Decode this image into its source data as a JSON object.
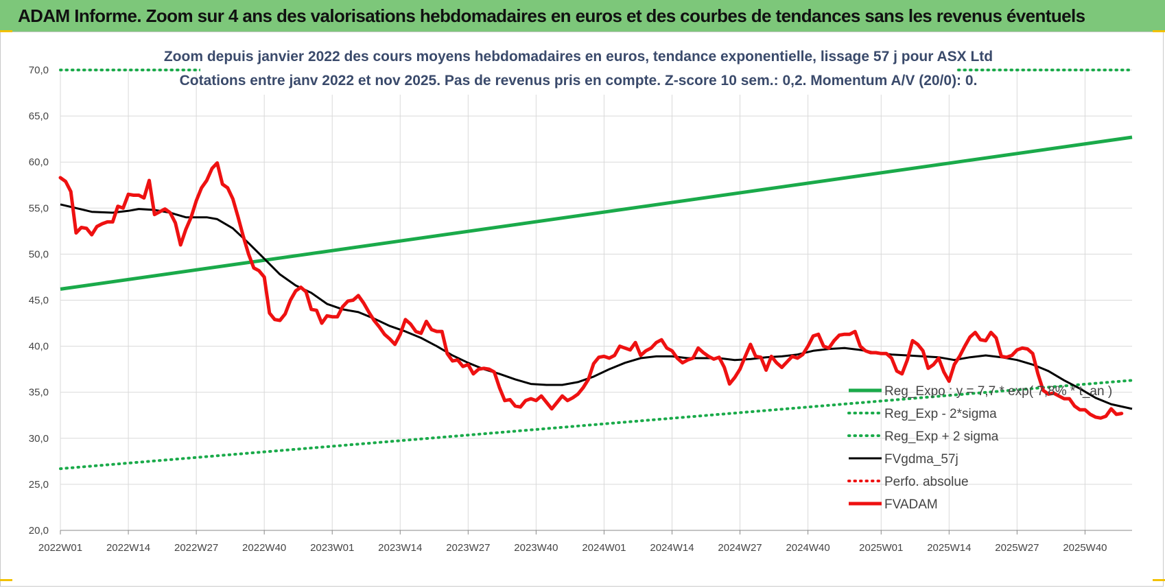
{
  "banner_title": "ADAM Informe. Zoom sur 4 ans des valorisations hebdomadaires en euros et des courbes de tendances sans les revenus éventuels",
  "colors": {
    "banner": "#7dc77a",
    "green": "#1aaa4a",
    "black": "#000000",
    "red": "#ee1111",
    "grid": "#d9d9d9"
  },
  "chart_data": {
    "type": "line",
    "title_line1": "Zoom depuis janvier 2022 des cours moyens hebdomadaires en euros, tendance exponentielle, lissage 57 j pour ASX Ltd",
    "title_line2": "Cotations entre janv 2022 et nov 2025. Pas de revenus pris en compte. Z-score 10 sem.: 0,2. Momentum A/V (20/0): 0.",
    "ylim": [
      20,
      70
    ],
    "yticks": [
      "20,0",
      "25,0",
      "30,0",
      "35,0",
      "40,0",
      "45,0",
      "50,0",
      "55,0",
      "60,0",
      "65,0",
      "70,0"
    ],
    "x_range_weeks": [
      0,
      205
    ],
    "xticks": [
      {
        "w": 0,
        "label": "2022W01"
      },
      {
        "w": 13,
        "label": "2022W14"
      },
      {
        "w": 26,
        "label": "2022W27"
      },
      {
        "w": 39,
        "label": "2022W40"
      },
      {
        "w": 52,
        "label": "2023W01"
      },
      {
        "w": 65,
        "label": "2023W14"
      },
      {
        "w": 78,
        "label": "2023W27"
      },
      {
        "w": 91,
        "label": "2023W40"
      },
      {
        "w": 104,
        "label": "2024W01"
      },
      {
        "w": 117,
        "label": "2024W14"
      },
      {
        "w": 130,
        "label": "2024W27"
      },
      {
        "w": 143,
        "label": "2024W40"
      },
      {
        "w": 157,
        "label": "2025W01"
      },
      {
        "w": 170,
        "label": "2025W14"
      },
      {
        "w": 183,
        "label": "2025W27"
      },
      {
        "w": 196,
        "label": "2025W40"
      }
    ],
    "legend": [
      {
        "label": "Reg_Expo : y = 7,7 * exp( 7,8% * t_an )",
        "color": "#1aaa4a",
        "style": "solid",
        "width": 5
      },
      {
        "label": "Reg_Exp - 2*sigma",
        "color": "#1aaa4a",
        "style": "dotted",
        "width": 4
      },
      {
        "label": "Reg_Exp + 2 sigma",
        "color": "#1aaa4a",
        "style": "dotted",
        "width": 4
      },
      {
        "label": "FVgdma_57j",
        "color": "#000000",
        "style": "solid",
        "width": 3
      },
      {
        "label": "Perfo. absolue",
        "color": "#ee1111",
        "style": "dotted",
        "width": 4
      },
      {
        "label": "FVADAM",
        "color": "#ee1111",
        "style": "solid",
        "width": 5
      }
    ],
    "series": [
      {
        "name": "Reg_Expo",
        "style": "solid",
        "color": "#1aaa4a",
        "points": [
          [
            0,
            46.2
          ],
          [
            205,
            62.7
          ]
        ]
      },
      {
        "name": "Reg_Exp - 2*sigma",
        "style": "dotted",
        "color": "#1aaa4a",
        "points": [
          [
            0,
            26.7
          ],
          [
            205,
            36.3
          ]
        ]
      },
      {
        "name": "Reg_Exp + 2 sigma",
        "style": "dotted",
        "color": "#1aaa4a",
        "points": [
          [
            0,
            70.0
          ],
          [
            205,
            70.0
          ]
        ]
      },
      {
        "name": "FVgdma_57j",
        "style": "solid",
        "color": "#000000",
        "points": [
          [
            0,
            55.4
          ],
          [
            3,
            55.0
          ],
          [
            6,
            54.6
          ],
          [
            10,
            54.5
          ],
          [
            13,
            54.7
          ],
          [
            15,
            54.9
          ],
          [
            18,
            54.8
          ],
          [
            21,
            54.5
          ],
          [
            24,
            54.0
          ],
          [
            28,
            54.0
          ],
          [
            30,
            53.8
          ],
          [
            33,
            52.8
          ],
          [
            36,
            51.2
          ],
          [
            39,
            49.5
          ],
          [
            42,
            47.8
          ],
          [
            45,
            46.6
          ],
          [
            48,
            45.8
          ],
          [
            51,
            44.6
          ],
          [
            54,
            44.0
          ],
          [
            57,
            43.7
          ],
          [
            60,
            43.0
          ],
          [
            63,
            42.2
          ],
          [
            66,
            41.6
          ],
          [
            69,
            40.9
          ],
          [
            72,
            40.0
          ],
          [
            75,
            39.0
          ],
          [
            78,
            38.2
          ],
          [
            81,
            37.5
          ],
          [
            84,
            37.0
          ],
          [
            87,
            36.4
          ],
          [
            90,
            35.9
          ],
          [
            93,
            35.8
          ],
          [
            96,
            35.8
          ],
          [
            99,
            36.1
          ],
          [
            102,
            36.7
          ],
          [
            105,
            37.5
          ],
          [
            108,
            38.2
          ],
          [
            111,
            38.7
          ],
          [
            114,
            38.9
          ],
          [
            117,
            38.9
          ],
          [
            120,
            38.7
          ],
          [
            123,
            38.7
          ],
          [
            126,
            38.7
          ],
          [
            129,
            38.5
          ],
          [
            132,
            38.6
          ],
          [
            135,
            38.8
          ],
          [
            138,
            38.9
          ],
          [
            141,
            39.1
          ],
          [
            144,
            39.5
          ],
          [
            147,
            39.7
          ],
          [
            150,
            39.8
          ],
          [
            153,
            39.6
          ],
          [
            156,
            39.3
          ],
          [
            159,
            39.1
          ],
          [
            162,
            39.0
          ],
          [
            165,
            38.9
          ],
          [
            168,
            38.8
          ],
          [
            171,
            38.5
          ],
          [
            174,
            38.8
          ],
          [
            177,
            39.0
          ],
          [
            180,
            38.8
          ],
          [
            183,
            38.5
          ],
          [
            186,
            38.0
          ],
          [
            189,
            37.3
          ],
          [
            192,
            36.3
          ],
          [
            195,
            35.4
          ],
          [
            198,
            34.4
          ],
          [
            201,
            33.7
          ],
          [
            205,
            33.2
          ]
        ]
      },
      {
        "name": "FVADAM",
        "style": "solid",
        "color": "#ee1111",
        "points": [
          [
            0,
            58.3
          ],
          [
            1,
            57.9
          ],
          [
            2,
            56.8
          ],
          [
            3,
            52.3
          ],
          [
            4,
            52.9
          ],
          [
            5,
            52.8
          ],
          [
            6,
            52.1
          ],
          [
            7,
            53.0
          ],
          [
            8,
            53.3
          ],
          [
            9,
            53.5
          ],
          [
            10,
            53.5
          ],
          [
            11,
            55.2
          ],
          [
            12,
            55.0
          ],
          [
            13,
            56.5
          ],
          [
            14,
            56.4
          ],
          [
            15,
            56.4
          ],
          [
            16,
            56.1
          ],
          [
            17,
            58.0
          ],
          [
            18,
            54.3
          ],
          [
            19,
            54.6
          ],
          [
            20,
            54.9
          ],
          [
            21,
            54.5
          ],
          [
            22,
            53.4
          ],
          [
            23,
            51.0
          ],
          [
            24,
            52.7
          ],
          [
            25,
            54.0
          ],
          [
            26,
            55.8
          ],
          [
            27,
            57.2
          ],
          [
            28,
            58.0
          ],
          [
            29,
            59.3
          ],
          [
            30,
            59.9
          ],
          [
            31,
            57.6
          ],
          [
            32,
            57.2
          ],
          [
            33,
            56.0
          ],
          [
            34,
            54.0
          ],
          [
            35,
            51.9
          ],
          [
            36,
            50.0
          ],
          [
            37,
            48.5
          ],
          [
            38,
            48.2
          ],
          [
            39,
            47.5
          ],
          [
            40,
            43.6
          ],
          [
            41,
            42.9
          ],
          [
            42,
            42.8
          ],
          [
            43,
            43.5
          ],
          [
            44,
            45.0
          ],
          [
            45,
            46.0
          ],
          [
            46,
            46.4
          ],
          [
            47,
            45.9
          ],
          [
            48,
            44.0
          ],
          [
            49,
            43.9
          ],
          [
            50,
            42.5
          ],
          [
            51,
            43.3
          ],
          [
            52,
            43.2
          ],
          [
            53,
            43.2
          ],
          [
            54,
            44.3
          ],
          [
            55,
            44.9
          ],
          [
            56,
            45.0
          ],
          [
            57,
            45.5
          ],
          [
            58,
            44.7
          ],
          [
            59,
            43.7
          ],
          [
            60,
            42.8
          ],
          [
            61,
            42.1
          ],
          [
            62,
            41.3
          ],
          [
            63,
            40.8
          ],
          [
            64,
            40.2
          ],
          [
            65,
            41.3
          ],
          [
            66,
            42.9
          ],
          [
            67,
            42.4
          ],
          [
            68,
            41.6
          ],
          [
            69,
            41.4
          ],
          [
            70,
            42.7
          ],
          [
            71,
            41.8
          ],
          [
            72,
            41.6
          ],
          [
            73,
            41.6
          ],
          [
            74,
            39.2
          ],
          [
            75,
            38.4
          ],
          [
            76,
            38.5
          ],
          [
            77,
            37.8
          ],
          [
            78,
            38.0
          ],
          [
            79,
            37.0
          ],
          [
            80,
            37.5
          ],
          [
            81,
            37.6
          ],
          [
            82,
            37.5
          ],
          [
            83,
            37.2
          ],
          [
            84,
            35.5
          ],
          [
            85,
            34.1
          ],
          [
            86,
            34.2
          ],
          [
            87,
            33.5
          ],
          [
            88,
            33.4
          ],
          [
            89,
            34.1
          ],
          [
            90,
            34.3
          ],
          [
            91,
            34.1
          ],
          [
            92,
            34.6
          ],
          [
            93,
            33.9
          ],
          [
            94,
            33.2
          ],
          [
            95,
            33.9
          ],
          [
            96,
            34.6
          ],
          [
            97,
            34.1
          ],
          [
            98,
            34.4
          ],
          [
            99,
            34.8
          ],
          [
            100,
            35.5
          ],
          [
            101,
            36.4
          ],
          [
            102,
            38.1
          ],
          [
            103,
            38.8
          ],
          [
            104,
            38.9
          ],
          [
            105,
            38.7
          ],
          [
            106,
            39.0
          ],
          [
            107,
            40.0
          ],
          [
            108,
            39.8
          ],
          [
            109,
            39.6
          ],
          [
            110,
            40.4
          ],
          [
            111,
            39.0
          ],
          [
            112,
            39.5
          ],
          [
            113,
            39.8
          ],
          [
            114,
            40.4
          ],
          [
            115,
            40.7
          ],
          [
            116,
            39.8
          ],
          [
            117,
            39.5
          ],
          [
            118,
            38.7
          ],
          [
            119,
            38.2
          ],
          [
            120,
            38.5
          ],
          [
            121,
            38.7
          ],
          [
            122,
            39.8
          ],
          [
            123,
            39.3
          ],
          [
            124,
            38.9
          ],
          [
            125,
            38.6
          ],
          [
            126,
            38.8
          ],
          [
            127,
            37.7
          ],
          [
            128,
            35.9
          ],
          [
            129,
            36.6
          ],
          [
            130,
            37.5
          ],
          [
            131,
            38.9
          ],
          [
            132,
            40.2
          ],
          [
            133,
            38.9
          ],
          [
            134,
            38.8
          ],
          [
            135,
            37.4
          ],
          [
            136,
            38.9
          ],
          [
            137,
            38.2
          ],
          [
            138,
            37.7
          ],
          [
            139,
            38.3
          ],
          [
            140,
            38.9
          ],
          [
            141,
            38.7
          ],
          [
            142,
            39.1
          ],
          [
            143,
            40.0
          ],
          [
            144,
            41.1
          ],
          [
            145,
            41.3
          ],
          [
            146,
            40.0
          ],
          [
            147,
            39.8
          ],
          [
            148,
            40.6
          ],
          [
            149,
            41.2
          ],
          [
            150,
            41.3
          ],
          [
            151,
            41.3
          ],
          [
            152,
            41.6
          ],
          [
            153,
            40.0
          ],
          [
            154,
            39.5
          ],
          [
            155,
            39.3
          ],
          [
            156,
            39.3
          ],
          [
            157,
            39.2
          ],
          [
            158,
            39.2
          ],
          [
            159,
            38.7
          ],
          [
            160,
            37.3
          ],
          [
            161,
            37.0
          ],
          [
            162,
            38.5
          ],
          [
            163,
            40.6
          ],
          [
            164,
            40.2
          ],
          [
            165,
            39.5
          ],
          [
            166,
            37.6
          ],
          [
            167,
            38.0
          ],
          [
            168,
            38.7
          ],
          [
            169,
            37.2
          ],
          [
            170,
            36.2
          ],
          [
            171,
            38.0
          ],
          [
            172,
            38.9
          ],
          [
            173,
            40.0
          ],
          [
            174,
            41.0
          ],
          [
            175,
            41.5
          ],
          [
            176,
            40.7
          ],
          [
            177,
            40.6
          ],
          [
            178,
            41.5
          ],
          [
            179,
            40.9
          ],
          [
            180,
            38.9
          ],
          [
            181,
            38.8
          ],
          [
            182,
            39.0
          ],
          [
            183,
            39.6
          ],
          [
            184,
            39.8
          ],
          [
            185,
            39.7
          ],
          [
            186,
            39.2
          ],
          [
            187,
            37.0
          ],
          [
            188,
            35.2
          ],
          [
            189,
            34.8
          ],
          [
            190,
            34.9
          ],
          [
            191,
            34.6
          ],
          [
            192,
            34.3
          ],
          [
            193,
            34.3
          ],
          [
            194,
            33.5
          ],
          [
            195,
            33.1
          ],
          [
            196,
            33.1
          ],
          [
            197,
            32.6
          ],
          [
            198,
            32.3
          ],
          [
            199,
            32.2
          ],
          [
            200,
            32.4
          ],
          [
            201,
            33.2
          ],
          [
            202,
            32.6
          ],
          [
            203,
            32.7
          ]
        ]
      }
    ]
  }
}
